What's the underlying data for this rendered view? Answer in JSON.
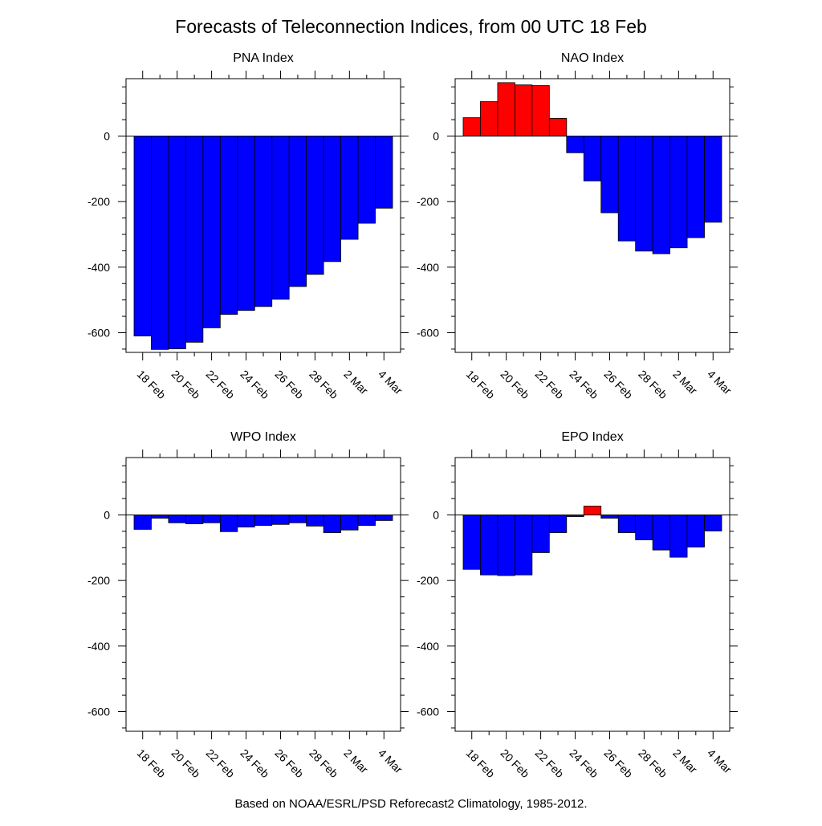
{
  "title": "Forecasts of Teleconnection Indices, from 00 UTC 18 Feb",
  "footer": "Based on NOAA/ESRL/PSD Reforecast2 Climatology, 1985-2012.",
  "colors": {
    "positive": "#ff0000",
    "negative": "#0000ff",
    "axis": "#000000"
  },
  "chart_data": [
    {
      "type": "bar",
      "title": "PNA Index",
      "categories": [
        "18 Feb",
        "19 Feb",
        "20 Feb",
        "21 Feb",
        "22 Feb",
        "23 Feb",
        "24 Feb",
        "25 Feb",
        "26 Feb",
        "27 Feb",
        "28 Feb",
        "1 Mar",
        "2 Mar",
        "3 Mar",
        "4 Mar"
      ],
      "xticklabels": [
        "18 Feb",
        "20 Feb",
        "22 Feb",
        "24 Feb",
        "26 Feb",
        "28 Feb",
        "2 Mar",
        "4 Mar"
      ],
      "values": [
        -610,
        -651,
        -649,
        -629,
        -585,
        -544,
        -532,
        -520,
        -498,
        -459,
        -422,
        -383,
        -315,
        -266,
        -220
      ],
      "yticks": [
        0,
        -200,
        -400,
        -600
      ],
      "ylim": [
        -660,
        175
      ]
    },
    {
      "type": "bar",
      "title": "NAO Index",
      "categories": [
        "18 Feb",
        "19 Feb",
        "20 Feb",
        "21 Feb",
        "22 Feb",
        "23 Feb",
        "24 Feb",
        "25 Feb",
        "26 Feb",
        "27 Feb",
        "28 Feb",
        "1 Mar",
        "2 Mar",
        "3 Mar",
        "4 Mar"
      ],
      "xticklabels": [
        "18 Feb",
        "20 Feb",
        "22 Feb",
        "24 Feb",
        "26 Feb",
        "28 Feb",
        "2 Mar",
        "4 Mar"
      ],
      "values": [
        56,
        105,
        163,
        156,
        154,
        54,
        -51,
        -137,
        -234,
        -320,
        -351,
        -359,
        -341,
        -310,
        -263
      ],
      "yticks": [
        0,
        -200,
        -400,
        -600
      ],
      "ylim": [
        -660,
        175
      ]
    },
    {
      "type": "bar",
      "title": "WPO Index",
      "categories": [
        "18 Feb",
        "19 Feb",
        "20 Feb",
        "21 Feb",
        "22 Feb",
        "23 Feb",
        "24 Feb",
        "25 Feb",
        "26 Feb",
        "27 Feb",
        "28 Feb",
        "1 Mar",
        "2 Mar",
        "3 Mar",
        "4 Mar"
      ],
      "xticklabels": [
        "18 Feb",
        "20 Feb",
        "22 Feb",
        "24 Feb",
        "26 Feb",
        "28 Feb",
        "2 Mar",
        "4 Mar"
      ],
      "values": [
        -44,
        -10,
        -24,
        -27,
        -24,
        -51,
        -37,
        -32,
        -29,
        -24,
        -34,
        -54,
        -46,
        -32,
        -17
      ],
      "yticks": [
        0,
        -200,
        -400,
        -600
      ],
      "ylim": [
        -660,
        175
      ]
    },
    {
      "type": "bar",
      "title": "EPO Index",
      "categories": [
        "18 Feb",
        "19 Feb",
        "20 Feb",
        "21 Feb",
        "22 Feb",
        "23 Feb",
        "24 Feb",
        "25 Feb",
        "26 Feb",
        "27 Feb",
        "28 Feb",
        "1 Mar",
        "2 Mar",
        "3 Mar",
        "4 Mar"
      ],
      "xticklabels": [
        "18 Feb",
        "20 Feb",
        "22 Feb",
        "24 Feb",
        "26 Feb",
        "28 Feb",
        "2 Mar",
        "4 Mar"
      ],
      "values": [
        -166,
        -183,
        -185,
        -183,
        -115,
        -54,
        -5,
        27,
        -10,
        -54,
        -76,
        -107,
        -129,
        -98,
        -49
      ],
      "yticks": [
        0,
        -200,
        -400,
        -600
      ],
      "ylim": [
        -660,
        175
      ]
    }
  ]
}
